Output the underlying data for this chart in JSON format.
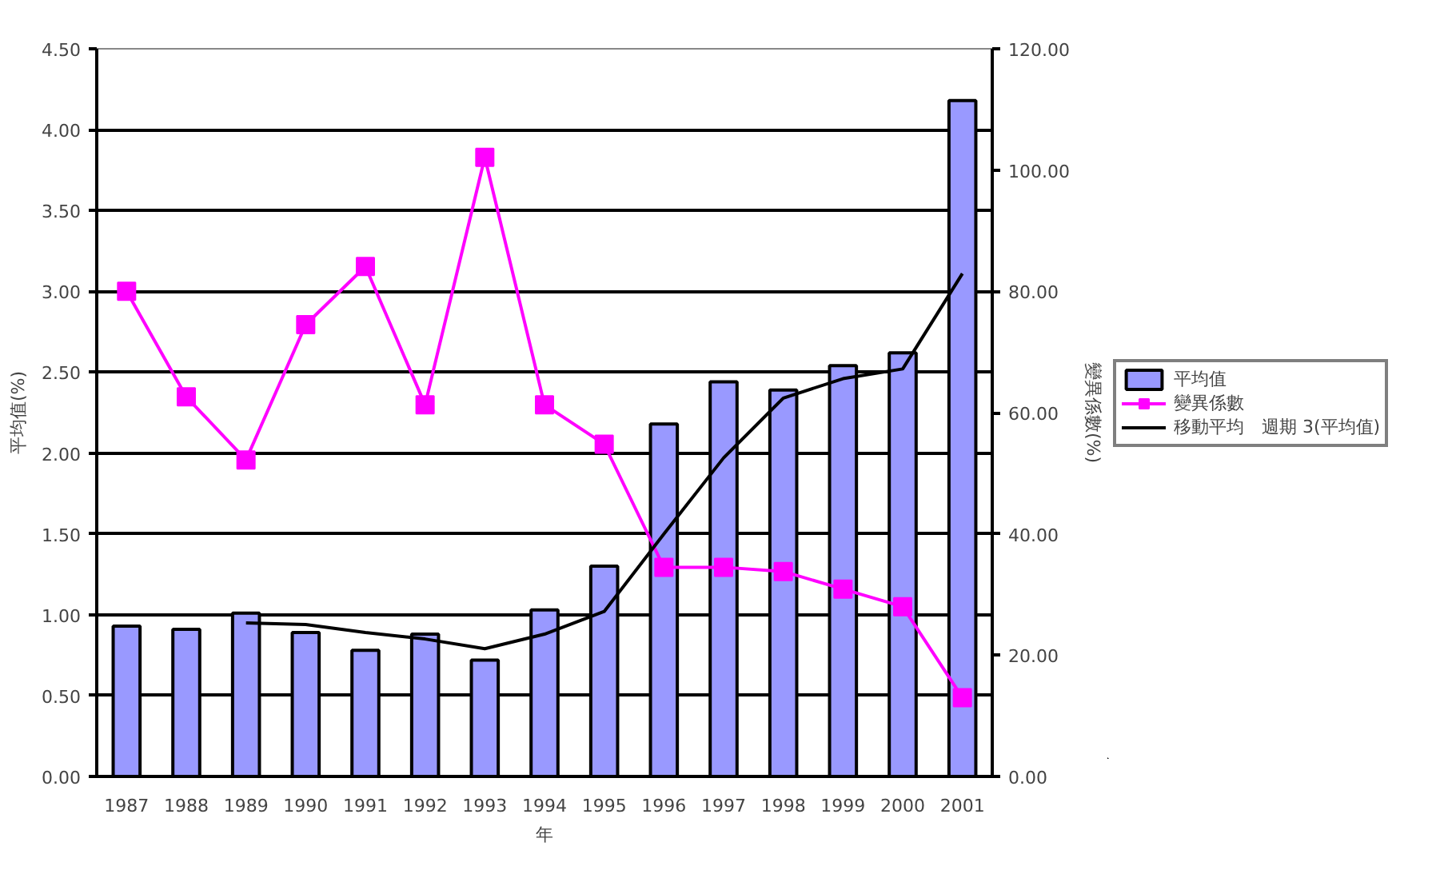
{
  "chart_data": {
    "type": "bar",
    "xlabel": "年",
    "ylabel": "平均值(%)",
    "y2label": "變異係數(%)",
    "categories": [
      "1987",
      "1988",
      "1989",
      "1990",
      "1991",
      "1992",
      "1993",
      "1994",
      "1995",
      "1996",
      "1997",
      "1998",
      "1999",
      "2000",
      "2001"
    ],
    "ylim": [
      0,
      4.5
    ],
    "yticks": [
      {
        "value": 0,
        "label": "0.00"
      },
      {
        "value": 0.5,
        "label": "0.50"
      },
      {
        "value": 1,
        "label": "1.00"
      },
      {
        "value": 1.5,
        "label": "1.50"
      },
      {
        "value": 2,
        "label": "2.00"
      },
      {
        "value": 2.5,
        "label": "2.50"
      },
      {
        "value": 3,
        "label": "3.00"
      },
      {
        "value": 3.5,
        "label": "3.50"
      },
      {
        "value": 4,
        "label": "4.00"
      },
      {
        "value": 4.5,
        "label": "4.50"
      }
    ],
    "y2lim": [
      0,
      120
    ],
    "y2ticks": [
      {
        "value": 0,
        "label": "0.00"
      },
      {
        "value": 20,
        "label": "20.00"
      },
      {
        "value": 40,
        "label": "40.00"
      },
      {
        "value": 60,
        "label": "60.00"
      },
      {
        "value": 80,
        "label": "80.00"
      },
      {
        "value": 100,
        "label": "100.00"
      },
      {
        "value": 120,
        "label": "120.00"
      }
    ],
    "grid": "y",
    "legend": "right",
    "series": [
      {
        "name": "平均值",
        "color": "#9999ff",
        "values": [
          0.93,
          0.91,
          1.01,
          0.89,
          0.78,
          0.88,
          0.72,
          1.03,
          1.3,
          2.18,
          2.44,
          2.39,
          2.54,
          2.62,
          4.18
        ]
      },
      {
        "name": "變異係數",
        "type": "line",
        "axis": "y2",
        "marker": "square",
        "color": "#ff00ff",
        "values": [
          80.0,
          62.6,
          52.2,
          74.5,
          84.1,
          61.3,
          102.1,
          61.3,
          54.8,
          34.5,
          34.5,
          33.8,
          30.9,
          28.0,
          13.0
        ]
      },
      {
        "name": "移動平均　週期 3(平均值)",
        "type": "line",
        "color": "#000000",
        "values": [
          null,
          null,
          0.95,
          0.94,
          0.89,
          0.85,
          0.79,
          0.88,
          1.02,
          1.5,
          1.97,
          2.34,
          2.46,
          2.52,
          3.11
        ]
      }
    ]
  }
}
